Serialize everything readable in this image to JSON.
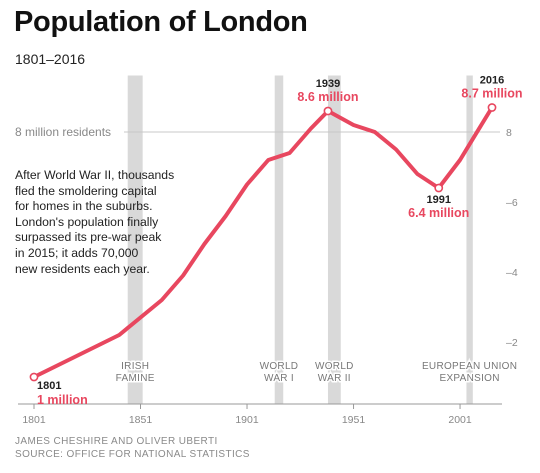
{
  "title": "Population of London",
  "subtitle": "1801–2016",
  "annotation": [
    "After World War II, thousands",
    "fled the smoldering capital",
    "for homes in the suburbs.",
    "London's population finally",
    "surpassed its pre-war peak",
    "in 2015; it adds 70,000",
    "new residents each year."
  ],
  "credits": [
    "JAMES CHESHIRE AND OLIVER UBERTI",
    "SOURCE: OFFICE FOR NATIONAL STATISTICS"
  ],
  "colors": {
    "line": "#e8475f",
    "band": "#d9d9d9",
    "axis": "#999999",
    "text": "#222222"
  },
  "chart_data": {
    "type": "line",
    "xlim": [
      1801,
      2016
    ],
    "ylim": [
      0.5,
      9.5
    ],
    "x_ticks": [
      1801,
      1851,
      1901,
      1951,
      2001
    ],
    "y_ticks": [
      2,
      4,
      6,
      8
    ],
    "y_tick_labels": [
      "–2",
      "–4",
      "–6",
      "8"
    ],
    "reference_line": {
      "value": 8,
      "label": "8 million residents"
    },
    "series": [
      {
        "x": [
          1801,
          1811,
          1821,
          1831,
          1841,
          1851,
          1861,
          1871,
          1881,
          1891,
          1901,
          1911,
          1921,
          1931,
          1939,
          1951,
          1961,
          1971,
          1981,
          1991,
          2001,
          2011,
          2016
        ],
        "values": [
          1.0,
          1.3,
          1.6,
          1.9,
          2.2,
          2.7,
          3.2,
          3.9,
          4.8,
          5.6,
          6.5,
          7.2,
          7.4,
          8.1,
          8.6,
          8.2,
          8.0,
          7.5,
          6.8,
          6.4,
          7.2,
          8.2,
          8.7
        ]
      }
    ],
    "highlights": [
      {
        "x": 1801,
        "y": 1.0,
        "year": "1801",
        "label": "1 million"
      },
      {
        "x": 1939,
        "y": 8.6,
        "year": "1939",
        "label": "8.6 million"
      },
      {
        "x": 1991,
        "y": 6.4,
        "year": "1991",
        "label": "6.4 million"
      },
      {
        "x": 2016,
        "y": 8.7,
        "year": "2016",
        "label": "8.7 million"
      }
    ],
    "event_bands": [
      {
        "x0": 1845,
        "x1": 1852,
        "labels": [
          "IRISH",
          "FAMINE"
        ]
      },
      {
        "x0": 1914,
        "x1": 1918,
        "labels": [
          "WORLD",
          "WAR I"
        ]
      },
      {
        "x0": 1939,
        "x1": 1945,
        "labels": [
          "WORLD",
          "WAR II"
        ]
      },
      {
        "x0": 2004,
        "x1": 2007,
        "labels": [
          "EUROPEAN UNION",
          "EXPANSION"
        ]
      }
    ]
  }
}
